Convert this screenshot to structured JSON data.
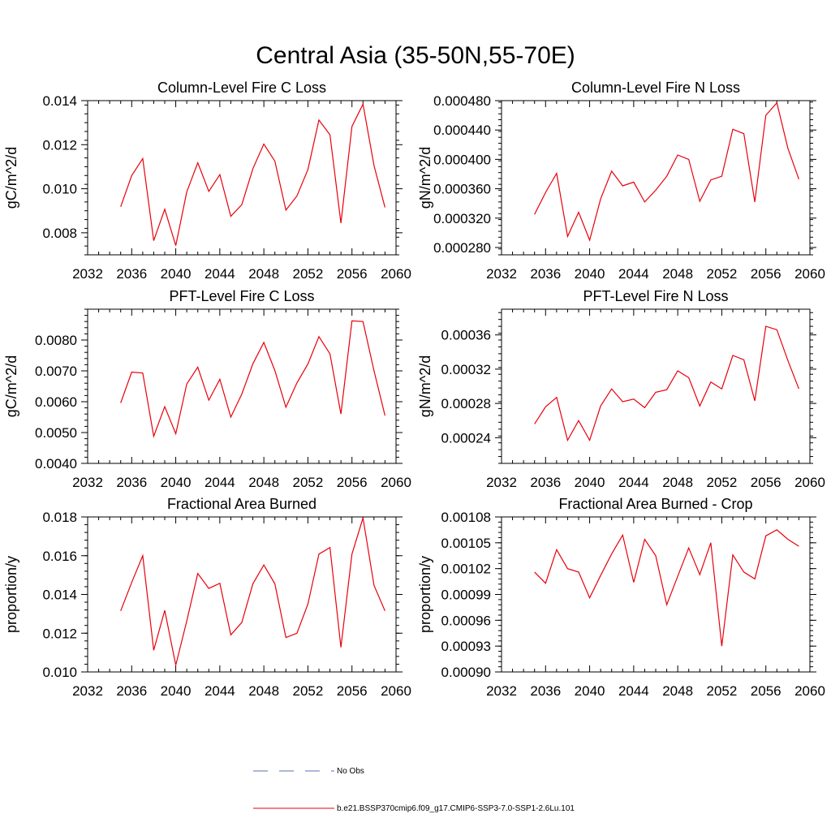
{
  "figure": {
    "title": "Central Asia (35-50N,55-70E)"
  },
  "legend": {
    "entries": [
      {
        "label": "No Obs",
        "style": "dashed",
        "color": "#5a6fb0"
      },
      {
        "label": "b.e21.BSSP370cmip6.f09_g17.CMIP6-SSP3-7.0-SSP1-2.6Lu.101",
        "style": "solid",
        "color": "#e8000b"
      }
    ]
  },
  "chart_data": [
    {
      "type": "line",
      "title": "Column-Level Fire C Loss",
      "xlabel": "",
      "ylabel": "gC/m^2/d",
      "xlim": [
        2032,
        2060
      ],
      "ylim": [
        0.007,
        0.014
      ],
      "xticks": [
        "2032",
        "2036",
        "2040",
        "2044",
        "2048",
        "2052",
        "2056",
        "2060"
      ],
      "yticks": [
        "0.008",
        "0.010",
        "0.012",
        "0.014"
      ],
      "color": "#e8000b",
      "x": [
        2035,
        2036,
        2037,
        2038,
        2039,
        2040,
        2041,
        2042,
        2043,
        2044,
        2045,
        2046,
        2047,
        2048,
        2049,
        2050,
        2051,
        2052,
        2053,
        2054,
        2055,
        2056,
        2057,
        2058,
        2059
      ],
      "values": [
        0.00918,
        0.0106,
        0.01137,
        0.00764,
        0.00907,
        0.00742,
        0.00985,
        0.01118,
        0.00988,
        0.01064,
        0.00875,
        0.00928,
        0.01091,
        0.01203,
        0.01125,
        0.00903,
        0.00967,
        0.01087,
        0.01312,
        0.01245,
        0.00844,
        0.01283,
        0.01384,
        0.01105,
        0.00915
      ]
    },
    {
      "type": "line",
      "title": "Column-Level Fire N Loss",
      "xlabel": "",
      "ylabel": "gN/m^2/d",
      "xlim": [
        2032,
        2060
      ],
      "ylim": [
        0.00027,
        0.00048
      ],
      "xticks": [
        "2032",
        "2036",
        "2040",
        "2044",
        "2048",
        "2052",
        "2056",
        "2060"
      ],
      "yticks": [
        "0.000280",
        "0.000320",
        "0.000360",
        "0.000400",
        "0.000440",
        "0.000480"
      ],
      "color": "#e8000b",
      "x": [
        2035,
        2036,
        2037,
        2038,
        2039,
        2040,
        2041,
        2042,
        2043,
        2044,
        2045,
        2046,
        2047,
        2048,
        2049,
        2050,
        2051,
        2052,
        2053,
        2054,
        2055,
        2056,
        2057,
        2058,
        2059
      ],
      "values": [
        0.000325,
        0.000355,
        0.000381,
        0.000295,
        0.000328,
        0.00029,
        0.000346,
        0.000384,
        0.000364,
        0.000369,
        0.000342,
        0.000358,
        0.000377,
        0.000406,
        0.0004,
        0.000343,
        0.000372,
        0.000377,
        0.000441,
        0.000435,
        0.000342,
        0.00046,
        0.000477,
        0.000415,
        0.000373
      ]
    },
    {
      "type": "line",
      "title": "PFT-Level Fire C Loss",
      "xlabel": "",
      "ylabel": "gC/m^2/d",
      "xlim": [
        2032,
        2060
      ],
      "ylim": [
        0.004,
        0.009
      ],
      "xticks": [
        "2032",
        "2036",
        "2040",
        "2044",
        "2048",
        "2052",
        "2056",
        "2060"
      ],
      "yticks": [
        "0.0040",
        "0.0050",
        "0.0060",
        "0.0070",
        "0.0080"
      ],
      "color": "#e8000b",
      "x": [
        2035,
        2036,
        2037,
        2038,
        2039,
        2040,
        2041,
        2042,
        2043,
        2044,
        2045,
        2046,
        2047,
        2048,
        2049,
        2050,
        2051,
        2052,
        2053,
        2054,
        2055,
        2056,
        2057,
        2058,
        2059
      ],
      "values": [
        0.00596,
        0.00696,
        0.00693,
        0.00488,
        0.00584,
        0.00496,
        0.00657,
        0.00712,
        0.00605,
        0.00673,
        0.0055,
        0.00625,
        0.00723,
        0.00792,
        0.00701,
        0.00582,
        0.00661,
        0.00722,
        0.00811,
        0.00755,
        0.0056,
        0.00862,
        0.0086,
        0.007,
        0.00555
      ]
    },
    {
      "type": "line",
      "title": "PFT-Level Fire N Loss",
      "xlabel": "",
      "ylabel": "gN/m^2/d",
      "xlim": [
        2032,
        2060
      ],
      "ylim": [
        0.00021,
        0.00039
      ],
      "xticks": [
        "2032",
        "2036",
        "2040",
        "2044",
        "2048",
        "2052",
        "2056",
        "2060"
      ],
      "yticks": [
        "0.00024",
        "0.00028",
        "0.00032",
        "0.00036"
      ],
      "color": "#e8000b",
      "x": [
        2035,
        2036,
        2037,
        2038,
        2039,
        2040,
        2041,
        2042,
        2043,
        2044,
        2045,
        2046,
        2047,
        2048,
        2049,
        2050,
        2051,
        2052,
        2053,
        2054,
        2055,
        2056,
        2057,
        2058,
        2059
      ],
      "values": [
        0.000256,
        0.000276,
        0.000287,
        0.000237,
        0.00026,
        0.000237,
        0.000277,
        0.000297,
        0.000282,
        0.000285,
        0.000275,
        0.000293,
        0.000296,
        0.000318,
        0.00031,
        0.000277,
        0.000305,
        0.000297,
        0.000336,
        0.000331,
        0.000283,
        0.00037,
        0.000366,
        0.00033,
        0.000297
      ]
    },
    {
      "type": "line",
      "title": "Fractional Area Burned",
      "xlabel": "",
      "ylabel": "proportion/y",
      "xlim": [
        2032,
        2060
      ],
      "ylim": [
        0.01,
        0.018
      ],
      "xticks": [
        "2032",
        "2036",
        "2040",
        "2044",
        "2048",
        "2052",
        "2056",
        "2060"
      ],
      "yticks": [
        "0.010",
        "0.012",
        "0.014",
        "0.016",
        "0.018"
      ],
      "color": "#e8000b",
      "x": [
        2035,
        2036,
        2037,
        2038,
        2039,
        2040,
        2041,
        2042,
        2043,
        2044,
        2045,
        2046,
        2047,
        2048,
        2049,
        2050,
        2051,
        2052,
        2053,
        2054,
        2055,
        2056,
        2057,
        2058,
        2059
      ],
      "values": [
        0.01315,
        0.01462,
        0.016,
        0.01112,
        0.01318,
        0.01035,
        0.01262,
        0.01508,
        0.01431,
        0.01458,
        0.01191,
        0.01256,
        0.01455,
        0.01552,
        0.01455,
        0.01178,
        0.012,
        0.0135,
        0.01608,
        0.01642,
        0.01127,
        0.01608,
        0.01795,
        0.01447,
        0.01315
      ]
    },
    {
      "type": "line",
      "title": "Fractional Area Burned - Crop",
      "xlabel": "",
      "ylabel": "proportion/y",
      "xlim": [
        2032,
        2060
      ],
      "ylim": [
        0.0009,
        0.00108
      ],
      "xticks": [
        "2032",
        "2036",
        "2040",
        "2044",
        "2048",
        "2052",
        "2056",
        "2060"
      ],
      "yticks": [
        "0.00090",
        "0.00093",
        "0.00096",
        "0.00099",
        "0.00102",
        "0.00105",
        "0.00108"
      ],
      "color": "#e8000b",
      "x": [
        2035,
        2036,
        2037,
        2038,
        2039,
        2040,
        2041,
        2042,
        2043,
        2044,
        2045,
        2046,
        2047,
        2048,
        2049,
        2050,
        2051,
        2052,
        2053,
        2054,
        2055,
        2056,
        2057,
        2058,
        2059
      ],
      "values": [
        0.001016,
        0.001003,
        0.001042,
        0.00102,
        0.001016,
        0.000986,
        0.001012,
        0.001037,
        0.001059,
        0.001004,
        0.001054,
        0.001035,
        0.000978,
        0.001011,
        0.001044,
        0.001013,
        0.00105,
        0.00093,
        0.001036,
        0.001016,
        0.001008,
        0.001058,
        0.001065,
        0.001054,
        0.001046
      ]
    }
  ]
}
